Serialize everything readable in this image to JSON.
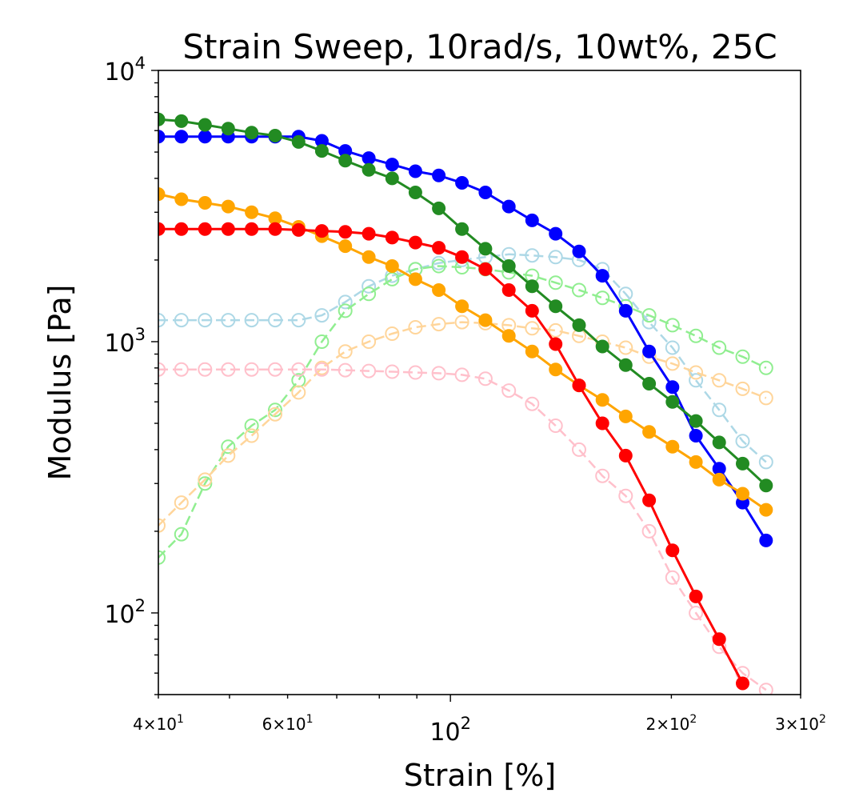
{
  "chart_data": {
    "type": "line",
    "title": "Strain Sweep, 10rad/s, 10wt%, 25C",
    "xlabel": "Strain [%]",
    "ylabel": "Modulus [Pa]",
    "xscale": "log",
    "yscale": "log",
    "xlim": [
      40,
      300
    ],
    "ylim": [
      50,
      10000
    ],
    "grid": false,
    "x_ticks": [
      {
        "value": 40,
        "mantissa": "4",
        "exp": "1",
        "minor": true
      },
      {
        "value": 60,
        "mantissa": "6",
        "exp": "1",
        "minor": true
      },
      {
        "value": 100,
        "mantissa": "",
        "exp": "2",
        "minor": false
      },
      {
        "value": 200,
        "mantissa": "2",
        "exp": "2",
        "minor": true
      },
      {
        "value": 300,
        "mantissa": "3",
        "exp": "2",
        "minor": true
      }
    ],
    "y_ticks": [
      {
        "value": 100,
        "exp": "2"
      },
      {
        "value": 1000,
        "exp": "3"
      },
      {
        "value": 10000,
        "exp": "4"
      }
    ],
    "x": [
      40,
      43,
      46.3,
      49.8,
      53.6,
      57.7,
      62.1,
      66.8,
      71.9,
      77.4,
      83.3,
      89.6,
      96.4,
      103.7,
      111.6,
      120.1,
      129.2,
      139.1,
      149.7,
      161.1,
      173.3,
      186.5,
      200.7,
      216,
      232.4,
      250.1,
      269.2,
      289.6
    ],
    "series": [
      {
        "color": "#0000ff",
        "linestyle": "solid",
        "marker": "filled",
        "values": [
          5700,
          5700,
          5700,
          5700,
          5700,
          5700,
          5700,
          5500,
          5050,
          4750,
          4500,
          4250,
          4100,
          3850,
          3550,
          3150,
          2800,
          2500,
          2150,
          1750,
          1300,
          920,
          680,
          450,
          340,
          255,
          185,
          null
        ]
      },
      {
        "color": "#228b22",
        "linestyle": "solid",
        "marker": "filled",
        "values": [
          6600,
          6500,
          6300,
          6100,
          5900,
          5750,
          5450,
          5050,
          4650,
          4300,
          4000,
          3550,
          3100,
          2600,
          2200,
          1900,
          1600,
          1350,
          1150,
          960,
          820,
          700,
          600,
          510,
          425,
          355,
          295,
          null
        ]
      },
      {
        "color": "#ffa500",
        "linestyle": "solid",
        "marker": "filled",
        "values": [
          3500,
          3350,
          3250,
          3150,
          3000,
          2850,
          2650,
          2450,
          2250,
          2050,
          1900,
          1700,
          1550,
          1350,
          1200,
          1050,
          920,
          790,
          690,
          610,
          530,
          465,
          410,
          360,
          310,
          275,
          240,
          null
        ]
      },
      {
        "color": "#ff0000",
        "linestyle": "solid",
        "marker": "filled",
        "values": [
          2600,
          2600,
          2600,
          2600,
          2600,
          2600,
          2580,
          2560,
          2540,
          2500,
          2420,
          2320,
          2220,
          2050,
          1850,
          1550,
          1300,
          980,
          690,
          500,
          380,
          260,
          170,
          115,
          80,
          55,
          null,
          null
        ]
      },
      {
        "color": "#add8e6",
        "linestyle": "dashed",
        "marker": "open",
        "values": [
          1200,
          1200,
          1200,
          1200,
          1200,
          1200,
          1200,
          1250,
          1400,
          1600,
          1750,
          1850,
          1950,
          2000,
          2050,
          2100,
          2080,
          2050,
          2000,
          1850,
          1500,
          1180,
          950,
          720,
          560,
          430,
          360,
          null
        ]
      },
      {
        "color": "#90ee90",
        "linestyle": "dashed",
        "marker": "open",
        "values": [
          160,
          195,
          300,
          410,
          490,
          560,
          720,
          1000,
          1300,
          1500,
          1700,
          1850,
          1900,
          1880,
          1850,
          1800,
          1750,
          1650,
          1550,
          1450,
          1350,
          1250,
          1150,
          1050,
          950,
          880,
          800,
          null
        ]
      },
      {
        "color": "#ffd59a",
        "linestyle": "dashed",
        "marker": "open",
        "values": [
          210,
          255,
          310,
          380,
          450,
          540,
          650,
          800,
          920,
          1000,
          1070,
          1130,
          1160,
          1180,
          1170,
          1150,
          1120,
          1100,
          1050,
          1000,
          950,
          880,
          830,
          770,
          720,
          670,
          620,
          null
        ]
      },
      {
        "color": "#ffc0cb",
        "linestyle": "dashed",
        "marker": "open",
        "values": [
          790,
          790,
          790,
          790,
          790,
          790,
          790,
          790,
          785,
          780,
          775,
          770,
          765,
          755,
          730,
          660,
          590,
          490,
          400,
          320,
          270,
          200,
          135,
          100,
          75,
          60,
          52,
          null
        ]
      }
    ]
  }
}
